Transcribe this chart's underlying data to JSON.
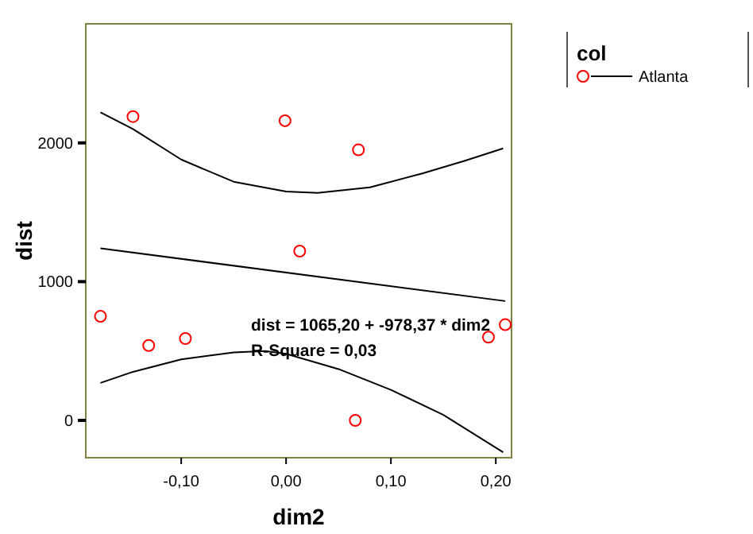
{
  "chart_data": {
    "type": "scatter",
    "xlabel": "dim2",
    "ylabel": "dist",
    "legend_title": "col",
    "xlim": [
      -0.191,
      0.215
    ],
    "ylim": [
      -269,
      2858
    ],
    "xticks": [
      {
        "value": -0.1,
        "label": "-0,10"
      },
      {
        "value": 0,
        "label": "0,00"
      },
      {
        "value": 0.1,
        "label": "0,10"
      },
      {
        "value": 0.2,
        "label": "0,20"
      }
    ],
    "yticks": [
      0,
      1000,
      2000
    ],
    "grid": false,
    "legend": "top right",
    "annotations": [
      "dist = 1065,20 + -978,37 * dim2",
      "R-Square = 0,03"
    ],
    "series": [
      {
        "name": "Atlanta",
        "marker": "circle",
        "color": "#ff0000",
        "x": [
          -0.177,
          -0.146,
          -0.131,
          -0.096,
          -0.001,
          0.013,
          0.069,
          0.066,
          0.193,
          0.209
        ],
        "values": [
          750,
          2190,
          540,
          590,
          2160,
          1220,
          1950,
          0,
          600,
          690
        ]
      },
      {
        "type": "line",
        "color": "#000000",
        "x": [
          -0.177,
          0.209
        ],
        "values": [
          1240,
          860
        ]
      },
      {
        "type": "line",
        "color": "#000000",
        "x": [
          -0.177,
          -0.146,
          -0.1,
          -0.05,
          0,
          0.03,
          0.08,
          0.13,
          0.17,
          0.207
        ],
        "values": [
          2220,
          2100,
          1880,
          1720,
          1650,
          1640,
          1680,
          1780,
          1870,
          1960
        ]
      },
      {
        "type": "line",
        "color": "#000000",
        "x": [
          -0.177,
          -0.146,
          -0.1,
          -0.05,
          -0.02,
          0,
          0.05,
          0.1,
          0.15,
          0.207
        ],
        "values": [
          270,
          350,
          440,
          490,
          500,
          480,
          370,
          220,
          40,
          -230
        ]
      }
    ]
  }
}
